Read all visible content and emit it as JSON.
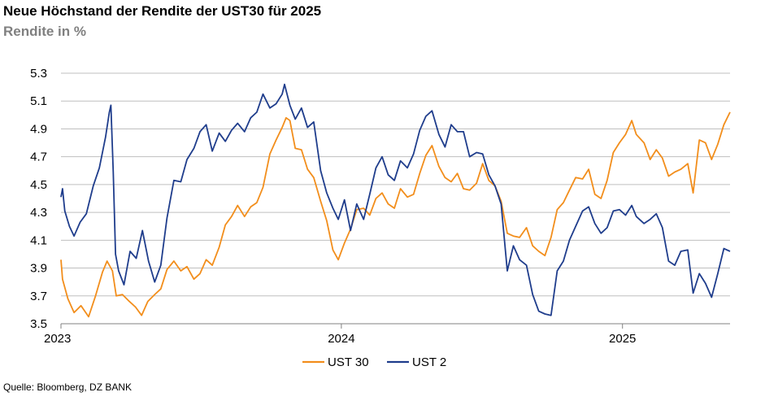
{
  "title": "Neue Höchstand der Rendite der UST30 für 2025",
  "subtitle": "Rendite in %",
  "source": "Quelle: Bloomberg, DZ BANK",
  "colors": {
    "ust30": "#F28E1C",
    "ust2": "#1F3D8C",
    "grid": "#BFBFBF",
    "axis": "#808080"
  },
  "chart_data": {
    "type": "line",
    "title": "Neue Höchstand der Rendite der UST30 für 2025",
    "ylabel": "Rendite in %",
    "ylim": [
      3.5,
      5.3
    ],
    "yticks": [
      "5.3",
      "5.1",
      "4.9",
      "4.7",
      "4.5",
      "4.3",
      "4.1",
      "3.9",
      "3.7",
      "3.5"
    ],
    "xlim": [
      "2023-01-01",
      "2025-05-21"
    ],
    "xticks": [
      {
        "label": "2023",
        "date": "2023-01-01"
      },
      {
        "label": "2024",
        "date": "2024-01-01"
      },
      {
        "label": "2025",
        "date": "2025-01-01"
      }
    ],
    "grid": true,
    "legend_position": "bottom",
    "series": [
      {
        "name": "UST 30",
        "points": [
          [
            "2023-01-01",
            3.96
          ],
          [
            "2023-01-03",
            3.82
          ],
          [
            "2023-01-10",
            3.68
          ],
          [
            "2023-01-18",
            3.58
          ],
          [
            "2023-01-27",
            3.63
          ],
          [
            "2023-02-06",
            3.55
          ],
          [
            "2023-02-15",
            3.7
          ],
          [
            "2023-02-24",
            3.87
          ],
          [
            "2023-03-02",
            3.95
          ],
          [
            "2023-03-09",
            3.88
          ],
          [
            "2023-03-14",
            3.7
          ],
          [
            "2023-03-22",
            3.71
          ],
          [
            "2023-03-31",
            3.66
          ],
          [
            "2023-04-08",
            3.62
          ],
          [
            "2023-04-16",
            3.56
          ],
          [
            "2023-04-24",
            3.66
          ],
          [
            "2023-05-03",
            3.71
          ],
          [
            "2023-05-11",
            3.75
          ],
          [
            "2023-05-19",
            3.89
          ],
          [
            "2023-05-28",
            3.95
          ],
          [
            "2023-06-06",
            3.88
          ],
          [
            "2023-06-14",
            3.91
          ],
          [
            "2023-06-23",
            3.82
          ],
          [
            "2023-07-01",
            3.86
          ],
          [
            "2023-07-09",
            3.96
          ],
          [
            "2023-07-17",
            3.92
          ],
          [
            "2023-07-26",
            4.05
          ],
          [
            "2023-08-03",
            4.21
          ],
          [
            "2023-08-11",
            4.27
          ],
          [
            "2023-08-19",
            4.35
          ],
          [
            "2023-08-28",
            4.27
          ],
          [
            "2023-09-05",
            4.34
          ],
          [
            "2023-09-13",
            4.37
          ],
          [
            "2023-09-21",
            4.48
          ],
          [
            "2023-09-30",
            4.72
          ],
          [
            "2023-10-08",
            4.82
          ],
          [
            "2023-10-16",
            4.91
          ],
          [
            "2023-10-21",
            4.98
          ],
          [
            "2023-10-26",
            4.96
          ],
          [
            "2023-11-02",
            4.76
          ],
          [
            "2023-11-10",
            4.75
          ],
          [
            "2023-11-18",
            4.61
          ],
          [
            "2023-11-26",
            4.55
          ],
          [
            "2023-12-05",
            4.38
          ],
          [
            "2023-12-13",
            4.24
          ],
          [
            "2023-12-21",
            4.03
          ],
          [
            "2023-12-28",
            3.96
          ],
          [
            "2024-01-05",
            4.08
          ],
          [
            "2024-01-13",
            4.18
          ],
          [
            "2024-01-21",
            4.32
          ],
          [
            "2024-01-30",
            4.33
          ],
          [
            "2024-02-07",
            4.28
          ],
          [
            "2024-02-15",
            4.4
          ],
          [
            "2024-02-23",
            4.44
          ],
          [
            "2024-03-02",
            4.36
          ],
          [
            "2024-03-10",
            4.33
          ],
          [
            "2024-03-18",
            4.47
          ],
          [
            "2024-03-27",
            4.41
          ],
          [
            "2024-04-04",
            4.43
          ],
          [
            "2024-04-12",
            4.58
          ],
          [
            "2024-04-20",
            4.71
          ],
          [
            "2024-04-28",
            4.78
          ],
          [
            "2024-05-07",
            4.63
          ],
          [
            "2024-05-15",
            4.55
          ],
          [
            "2024-05-23",
            4.52
          ],
          [
            "2024-05-31",
            4.58
          ],
          [
            "2024-06-08",
            4.47
          ],
          [
            "2024-06-16",
            4.46
          ],
          [
            "2024-06-25",
            4.51
          ],
          [
            "2024-07-03",
            4.65
          ],
          [
            "2024-07-11",
            4.53
          ],
          [
            "2024-07-19",
            4.49
          ],
          [
            "2024-07-27",
            4.38
          ],
          [
            "2024-08-04",
            4.15
          ],
          [
            "2024-08-12",
            4.13
          ],
          [
            "2024-08-20",
            4.12
          ],
          [
            "2024-08-29",
            4.19
          ],
          [
            "2024-09-06",
            4.06
          ],
          [
            "2024-09-14",
            4.02
          ],
          [
            "2024-09-22",
            3.99
          ],
          [
            "2024-09-30",
            4.12
          ],
          [
            "2024-10-08",
            4.32
          ],
          [
            "2024-10-16",
            4.37
          ],
          [
            "2024-10-24",
            4.46
          ],
          [
            "2024-11-01",
            4.55
          ],
          [
            "2024-11-10",
            4.54
          ],
          [
            "2024-11-18",
            4.61
          ],
          [
            "2024-11-26",
            4.43
          ],
          [
            "2024-12-04",
            4.4
          ],
          [
            "2024-12-12",
            4.53
          ],
          [
            "2024-12-20",
            4.73
          ],
          [
            "2024-12-28",
            4.8
          ],
          [
            "2025-01-05",
            4.86
          ],
          [
            "2025-01-13",
            4.96
          ],
          [
            "2025-01-19",
            4.86
          ],
          [
            "2025-01-29",
            4.8
          ],
          [
            "2025-02-06",
            4.68
          ],
          [
            "2025-02-14",
            4.75
          ],
          [
            "2025-02-22",
            4.69
          ],
          [
            "2025-03-02",
            4.56
          ],
          [
            "2025-03-10",
            4.59
          ],
          [
            "2025-03-18",
            4.61
          ],
          [
            "2025-03-27",
            4.65
          ],
          [
            "2025-04-03",
            4.44
          ],
          [
            "2025-04-11",
            4.82
          ],
          [
            "2025-04-19",
            4.8
          ],
          [
            "2025-04-27",
            4.68
          ],
          [
            "2025-05-05",
            4.79
          ],
          [
            "2025-05-13",
            4.93
          ],
          [
            "2025-05-21",
            5.02
          ]
        ]
      },
      {
        "name": "UST 2",
        "points": [
          [
            "2023-01-01",
            4.41
          ],
          [
            "2023-01-03",
            4.47
          ],
          [
            "2023-01-06",
            4.31
          ],
          [
            "2023-01-12",
            4.2
          ],
          [
            "2023-01-18",
            4.13
          ],
          [
            "2023-01-26",
            4.23
          ],
          [
            "2023-02-03",
            4.29
          ],
          [
            "2023-02-12",
            4.49
          ],
          [
            "2023-02-20",
            4.62
          ],
          [
            "2023-02-28",
            4.84
          ],
          [
            "2023-03-05",
            5.02
          ],
          [
            "2023-03-07",
            5.07
          ],
          [
            "2023-03-10",
            4.59
          ],
          [
            "2023-03-13",
            4.0
          ],
          [
            "2023-03-17",
            3.88
          ],
          [
            "2023-03-24",
            3.78
          ],
          [
            "2023-04-01",
            4.02
          ],
          [
            "2023-04-09",
            3.97
          ],
          [
            "2023-04-17",
            4.17
          ],
          [
            "2023-04-25",
            3.95
          ],
          [
            "2023-05-03",
            3.8
          ],
          [
            "2023-05-11",
            3.92
          ],
          [
            "2023-05-19",
            4.26
          ],
          [
            "2023-05-28",
            4.53
          ],
          [
            "2023-06-06",
            4.52
          ],
          [
            "2023-06-14",
            4.68
          ],
          [
            "2023-06-23",
            4.76
          ],
          [
            "2023-07-01",
            4.88
          ],
          [
            "2023-07-09",
            4.93
          ],
          [
            "2023-07-17",
            4.74
          ],
          [
            "2023-07-26",
            4.87
          ],
          [
            "2023-08-03",
            4.81
          ],
          [
            "2023-08-11",
            4.89
          ],
          [
            "2023-08-19",
            4.94
          ],
          [
            "2023-08-28",
            4.88
          ],
          [
            "2023-09-05",
            4.98
          ],
          [
            "2023-09-13",
            5.02
          ],
          [
            "2023-09-21",
            5.15
          ],
          [
            "2023-09-30",
            5.05
          ],
          [
            "2023-10-08",
            5.08
          ],
          [
            "2023-10-16",
            5.15
          ],
          [
            "2023-10-19",
            5.22
          ],
          [
            "2023-10-26",
            5.07
          ],
          [
            "2023-11-02",
            4.97
          ],
          [
            "2023-11-10",
            5.05
          ],
          [
            "2023-11-18",
            4.91
          ],
          [
            "2023-11-26",
            4.95
          ],
          [
            "2023-12-05",
            4.6
          ],
          [
            "2023-12-13",
            4.44
          ],
          [
            "2023-12-21",
            4.33
          ],
          [
            "2023-12-28",
            4.25
          ],
          [
            "2024-01-05",
            4.39
          ],
          [
            "2024-01-13",
            4.17
          ],
          [
            "2024-01-21",
            4.36
          ],
          [
            "2024-01-30",
            4.25
          ],
          [
            "2024-02-07",
            4.43
          ],
          [
            "2024-02-15",
            4.62
          ],
          [
            "2024-02-23",
            4.7
          ],
          [
            "2024-03-02",
            4.57
          ],
          [
            "2024-03-10",
            4.53
          ],
          [
            "2024-03-18",
            4.67
          ],
          [
            "2024-03-27",
            4.62
          ],
          [
            "2024-04-04",
            4.72
          ],
          [
            "2024-04-12",
            4.89
          ],
          [
            "2024-04-20",
            4.99
          ],
          [
            "2024-04-28",
            5.03
          ],
          [
            "2024-05-07",
            4.86
          ],
          [
            "2024-05-15",
            4.77
          ],
          [
            "2024-05-23",
            4.93
          ],
          [
            "2024-05-31",
            4.88
          ],
          [
            "2024-06-08",
            4.88
          ],
          [
            "2024-06-16",
            4.7
          ],
          [
            "2024-06-25",
            4.73
          ],
          [
            "2024-07-03",
            4.72
          ],
          [
            "2024-07-11",
            4.57
          ],
          [
            "2024-07-19",
            4.49
          ],
          [
            "2024-07-27",
            4.36
          ],
          [
            "2024-08-04",
            3.88
          ],
          [
            "2024-08-12",
            4.06
          ],
          [
            "2024-08-20",
            3.96
          ],
          [
            "2024-08-29",
            3.92
          ],
          [
            "2024-09-06",
            3.71
          ],
          [
            "2024-09-14",
            3.59
          ],
          [
            "2024-09-22",
            3.57
          ],
          [
            "2024-09-30",
            3.56
          ],
          [
            "2024-10-08",
            3.88
          ],
          [
            "2024-10-16",
            3.95
          ],
          [
            "2024-10-24",
            4.1
          ],
          [
            "2024-11-01",
            4.2
          ],
          [
            "2024-11-10",
            4.31
          ],
          [
            "2024-11-18",
            4.34
          ],
          [
            "2024-11-26",
            4.22
          ],
          [
            "2024-12-04",
            4.15
          ],
          [
            "2024-12-12",
            4.19
          ],
          [
            "2024-12-20",
            4.31
          ],
          [
            "2024-12-28",
            4.32
          ],
          [
            "2025-01-05",
            4.28
          ],
          [
            "2025-01-13",
            4.35
          ],
          [
            "2025-01-19",
            4.27
          ],
          [
            "2025-01-29",
            4.22
          ],
          [
            "2025-02-06",
            4.25
          ],
          [
            "2025-02-14",
            4.29
          ],
          [
            "2025-02-22",
            4.19
          ],
          [
            "2025-03-02",
            3.95
          ],
          [
            "2025-03-10",
            3.92
          ],
          [
            "2025-03-18",
            4.02
          ],
          [
            "2025-03-27",
            4.03
          ],
          [
            "2025-04-03",
            3.72
          ],
          [
            "2025-04-11",
            3.86
          ],
          [
            "2025-04-19",
            3.79
          ],
          [
            "2025-04-27",
            3.69
          ],
          [
            "2025-05-05",
            3.86
          ],
          [
            "2025-05-13",
            4.04
          ],
          [
            "2025-05-21",
            4.02
          ]
        ]
      }
    ]
  }
}
